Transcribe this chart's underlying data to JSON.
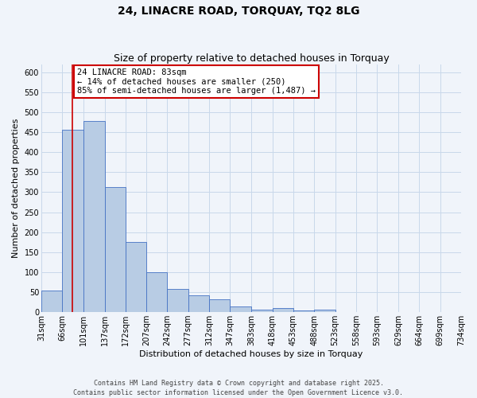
{
  "title": "24, LINACRE ROAD, TORQUAY, TQ2 8LG",
  "subtitle": "Size of property relative to detached houses in Torquay",
  "xlabel": "Distribution of detached houses by size in Torquay",
  "ylabel": "Number of detached properties",
  "bar_values": [
    55,
    457,
    478,
    312,
    175,
    100,
    59,
    42,
    32,
    15,
    6,
    10,
    5,
    7,
    0,
    0,
    0,
    0,
    0,
    0
  ],
  "bin_labels": [
    "31sqm",
    "66sqm",
    "101sqm",
    "137sqm",
    "172sqm",
    "207sqm",
    "242sqm",
    "277sqm",
    "312sqm",
    "347sqm",
    "383sqm",
    "418sqm",
    "453sqm",
    "488sqm",
    "523sqm",
    "558sqm",
    "593sqm",
    "629sqm",
    "664sqm",
    "699sqm",
    "734sqm"
  ],
  "bar_left_edges": [
    31,
    66,
    101,
    137,
    172,
    207,
    242,
    277,
    312,
    347,
    383,
    418,
    453,
    488,
    523,
    558,
    593,
    629,
    664,
    699
  ],
  "bar_widths": [
    35,
    35,
    36,
    35,
    35,
    35,
    35,
    35,
    35,
    36,
    35,
    35,
    35,
    35,
    35,
    35,
    36,
    35,
    35,
    35
  ],
  "bar_color": "#b8cce4",
  "bar_edge_color": "#4472c4",
  "property_line_x": 83,
  "property_line_color": "#cc0000",
  "annotation_text": "24 LINACRE ROAD: 83sqm\n← 14% of detached houses are smaller (250)\n85% of semi-detached houses are larger (1,487) →",
  "annotation_box_color": "#ffffff",
  "annotation_box_edge": "#cc0000",
  "ylim": [
    0,
    620
  ],
  "yticks": [
    0,
    50,
    100,
    150,
    200,
    250,
    300,
    350,
    400,
    450,
    500,
    550,
    600
  ],
  "background_color": "#f0f4fa",
  "grid_color": "#c8d8ea",
  "footer_text": "Contains HM Land Registry data © Crown copyright and database right 2025.\nContains public sector information licensed under the Open Government Licence v3.0.",
  "title_fontsize": 10,
  "subtitle_fontsize": 9,
  "axis_label_fontsize": 8,
  "tick_fontsize": 7,
  "annotation_fontsize": 7.5
}
